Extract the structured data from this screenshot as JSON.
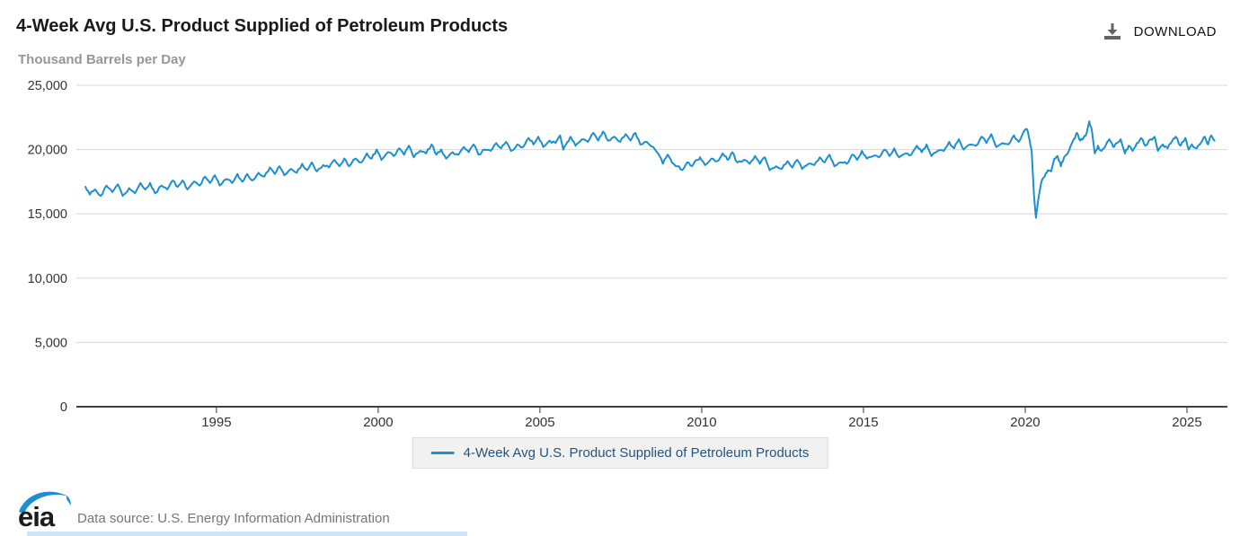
{
  "header": {
    "title": "4-Week Avg U.S. Product Supplied of Petroleum Products",
    "subtitle": "Thousand Barrels per Day",
    "download_label": "DOWNLOAD"
  },
  "legend": {
    "label": "4-Week Avg U.S. Product Supplied of Petroleum Products"
  },
  "footer": {
    "logo_text": "eia",
    "data_source": "Data source: U.S. Energy Information Administration"
  },
  "colors": {
    "line": "#1b8fd0",
    "grid": "#d8d8d8",
    "axis": "#404040",
    "tick_text": "#333333",
    "legend_text": "#25557d",
    "icon_gray": "#636363",
    "logo_blue": "#1b8fd0"
  },
  "chart_data": {
    "type": "line",
    "title": "4-Week Avg U.S. Product Supplied of Petroleum Products",
    "ylabel": "Thousand Barrels per Day",
    "legend_position": "bottom",
    "grid": true,
    "texture_amplitude": 110,
    "x_axis": {
      "range": [
        1990.67,
        2026.25
      ],
      "ticks": [
        1995,
        2000,
        2005,
        2010,
        2015,
        2020,
        2025
      ]
    },
    "y_axis": {
      "range": [
        0,
        25000
      ],
      "tick_step": 5000,
      "tick_labels": [
        "0",
        "5,000",
        "10,000",
        "15,000",
        "20,000",
        "25,000"
      ]
    },
    "series": [
      {
        "name": "4-Week Avg U.S. Product Supplied of Petroleum Products",
        "color": "#1b8fd0",
        "points": [
          [
            1990.95,
            17100
          ],
          [
            1991.08,
            16500
          ],
          [
            1991.25,
            16900
          ],
          [
            1991.42,
            16400
          ],
          [
            1991.6,
            17200
          ],
          [
            1991.78,
            16700
          ],
          [
            1991.95,
            17300
          ],
          [
            1992.1,
            16400
          ],
          [
            1992.3,
            17000
          ],
          [
            1992.48,
            16600
          ],
          [
            1992.65,
            17400
          ],
          [
            1992.8,
            16900
          ],
          [
            1992.95,
            17400
          ],
          [
            1993.1,
            16600
          ],
          [
            1993.3,
            17200
          ],
          [
            1993.48,
            16900
          ],
          [
            1993.65,
            17600
          ],
          [
            1993.8,
            17100
          ],
          [
            1993.95,
            17600
          ],
          [
            1994.1,
            16900
          ],
          [
            1994.3,
            17500
          ],
          [
            1994.48,
            17200
          ],
          [
            1994.65,
            17900
          ],
          [
            1994.8,
            17400
          ],
          [
            1994.95,
            18000
          ],
          [
            1995.1,
            17200
          ],
          [
            1995.3,
            17700
          ],
          [
            1995.48,
            17400
          ],
          [
            1995.65,
            18100
          ],
          [
            1995.8,
            17500
          ],
          [
            1995.95,
            18100
          ],
          [
            1996.1,
            17600
          ],
          [
            1996.3,
            18200
          ],
          [
            1996.48,
            17900
          ],
          [
            1996.65,
            18600
          ],
          [
            1996.8,
            18100
          ],
          [
            1996.95,
            18700
          ],
          [
            1997.1,
            18000
          ],
          [
            1997.3,
            18500
          ],
          [
            1997.48,
            18200
          ],
          [
            1997.65,
            18900
          ],
          [
            1997.8,
            18400
          ],
          [
            1997.95,
            19000
          ],
          [
            1998.1,
            18300
          ],
          [
            1998.3,
            18800
          ],
          [
            1998.48,
            18600
          ],
          [
            1998.65,
            19200
          ],
          [
            1998.8,
            18700
          ],
          [
            1998.95,
            19300
          ],
          [
            1999.1,
            18700
          ],
          [
            1999.3,
            19300
          ],
          [
            1999.48,
            19000
          ],
          [
            1999.65,
            19700
          ],
          [
            1999.8,
            19300
          ],
          [
            1999.95,
            20000
          ],
          [
            2000.1,
            19200
          ],
          [
            2000.3,
            19800
          ],
          [
            2000.48,
            19500
          ],
          [
            2000.65,
            20100
          ],
          [
            2000.8,
            19600
          ],
          [
            2000.95,
            20300
          ],
          [
            2001.1,
            19400
          ],
          [
            2001.3,
            19900
          ],
          [
            2001.48,
            19700
          ],
          [
            2001.65,
            20400
          ],
          [
            2001.8,
            19600
          ],
          [
            2001.95,
            20000
          ],
          [
            2002.1,
            19300
          ],
          [
            2002.3,
            19800
          ],
          [
            2002.48,
            19600
          ],
          [
            2002.65,
            20200
          ],
          [
            2002.8,
            19800
          ],
          [
            2002.95,
            20400
          ],
          [
            2003.1,
            19600
          ],
          [
            2003.3,
            20000
          ],
          [
            2003.48,
            19900
          ],
          [
            2003.65,
            20500
          ],
          [
            2003.8,
            20100
          ],
          [
            2003.95,
            20600
          ],
          [
            2004.1,
            19900
          ],
          [
            2004.3,
            20400
          ],
          [
            2004.48,
            20200
          ],
          [
            2004.65,
            20900
          ],
          [
            2004.8,
            20400
          ],
          [
            2004.95,
            21000
          ],
          [
            2005.1,
            20200
          ],
          [
            2005.3,
            20700
          ],
          [
            2005.48,
            20500
          ],
          [
            2005.62,
            21100
          ],
          [
            2005.72,
            20000
          ],
          [
            2005.85,
            20600
          ],
          [
            2005.95,
            21000
          ],
          [
            2006.1,
            20300
          ],
          [
            2006.3,
            20800
          ],
          [
            2006.48,
            20600
          ],
          [
            2006.65,
            21300
          ],
          [
            2006.8,
            20700
          ],
          [
            2006.95,
            21400
          ],
          [
            2007.1,
            20700
          ],
          [
            2007.3,
            21000
          ],
          [
            2007.48,
            20600
          ],
          [
            2007.65,
            21200
          ],
          [
            2007.8,
            20700
          ],
          [
            2007.95,
            21300
          ],
          [
            2008.1,
            20400
          ],
          [
            2008.3,
            20600
          ],
          [
            2008.5,
            20200
          ],
          [
            2008.65,
            19700
          ],
          [
            2008.8,
            18900
          ],
          [
            2008.95,
            19600
          ],
          [
            2009.08,
            19000
          ],
          [
            2009.25,
            18700
          ],
          [
            2009.4,
            18400
          ],
          [
            2009.55,
            19000
          ],
          [
            2009.7,
            18700
          ],
          [
            2009.85,
            19200
          ],
          [
            2009.95,
            19400
          ],
          [
            2010.1,
            18800
          ],
          [
            2010.3,
            19300
          ],
          [
            2010.48,
            19100
          ],
          [
            2010.65,
            19700
          ],
          [
            2010.8,
            19200
          ],
          [
            2010.95,
            19800
          ],
          [
            2011.1,
            19000
          ],
          [
            2011.3,
            19200
          ],
          [
            2011.48,
            18900
          ],
          [
            2011.65,
            19500
          ],
          [
            2011.8,
            18900
          ],
          [
            2011.95,
            19400
          ],
          [
            2012.1,
            18400
          ],
          [
            2012.3,
            18700
          ],
          [
            2012.48,
            18500
          ],
          [
            2012.65,
            19100
          ],
          [
            2012.8,
            18600
          ],
          [
            2012.95,
            19200
          ],
          [
            2013.1,
            18500
          ],
          [
            2013.3,
            18900
          ],
          [
            2013.48,
            18800
          ],
          [
            2013.65,
            19400
          ],
          [
            2013.8,
            19000
          ],
          [
            2013.95,
            19600
          ],
          [
            2014.1,
            18700
          ],
          [
            2014.3,
            19000
          ],
          [
            2014.48,
            18900
          ],
          [
            2014.65,
            19600
          ],
          [
            2014.8,
            19200
          ],
          [
            2014.95,
            19900
          ],
          [
            2015.1,
            19300
          ],
          [
            2015.3,
            19500
          ],
          [
            2015.48,
            19400
          ],
          [
            2015.65,
            20000
          ],
          [
            2015.8,
            19500
          ],
          [
            2015.95,
            20100
          ],
          [
            2016.1,
            19400
          ],
          [
            2016.3,
            19700
          ],
          [
            2016.48,
            19600
          ],
          [
            2016.65,
            20300
          ],
          [
            2016.8,
            19800
          ],
          [
            2016.95,
            20400
          ],
          [
            2017.1,
            19500
          ],
          [
            2017.3,
            19900
          ],
          [
            2017.48,
            19900
          ],
          [
            2017.65,
            20600
          ],
          [
            2017.8,
            20100
          ],
          [
            2017.95,
            20800
          ],
          [
            2018.1,
            20000
          ],
          [
            2018.3,
            20400
          ],
          [
            2018.48,
            20300
          ],
          [
            2018.65,
            21000
          ],
          [
            2018.8,
            20500
          ],
          [
            2018.95,
            21200
          ],
          [
            2019.1,
            20200
          ],
          [
            2019.3,
            20500
          ],
          [
            2019.48,
            20400
          ],
          [
            2019.65,
            21100
          ],
          [
            2019.8,
            20600
          ],
          [
            2019.95,
            21400
          ],
          [
            2020.05,
            21600
          ],
          [
            2020.14,
            20700
          ],
          [
            2020.2,
            19800
          ],
          [
            2020.27,
            16500
          ],
          [
            2020.33,
            14700
          ],
          [
            2020.42,
            16400
          ],
          [
            2020.5,
            17500
          ],
          [
            2020.6,
            17900
          ],
          [
            2020.7,
            18400
          ],
          [
            2020.8,
            18300
          ],
          [
            2020.9,
            19300
          ],
          [
            2021.0,
            19500
          ],
          [
            2021.1,
            18700
          ],
          [
            2021.2,
            19400
          ],
          [
            2021.35,
            19900
          ],
          [
            2021.5,
            20800
          ],
          [
            2021.6,
            21300
          ],
          [
            2021.7,
            20700
          ],
          [
            2021.8,
            20900
          ],
          [
            2021.9,
            21300
          ],
          [
            2021.98,
            22200
          ],
          [
            2022.06,
            21500
          ],
          [
            2022.15,
            19700
          ],
          [
            2022.25,
            20300
          ],
          [
            2022.35,
            19900
          ],
          [
            2022.5,
            20400
          ],
          [
            2022.6,
            20800
          ],
          [
            2022.72,
            20200
          ],
          [
            2022.82,
            20500
          ],
          [
            2022.95,
            20800
          ],
          [
            2023.08,
            19700
          ],
          [
            2023.2,
            20300
          ],
          [
            2023.32,
            19900
          ],
          [
            2023.45,
            20500
          ],
          [
            2023.58,
            20900
          ],
          [
            2023.72,
            20300
          ],
          [
            2023.88,
            20800
          ],
          [
            2024.0,
            21000
          ],
          [
            2024.1,
            19900
          ],
          [
            2024.25,
            20400
          ],
          [
            2024.4,
            20100
          ],
          [
            2024.55,
            20700
          ],
          [
            2024.65,
            21000
          ],
          [
            2024.8,
            20300
          ],
          [
            2024.95,
            20900
          ],
          [
            2025.05,
            20000
          ],
          [
            2025.15,
            20400
          ],
          [
            2025.3,
            20100
          ],
          [
            2025.45,
            20600
          ],
          [
            2025.55,
            21000
          ],
          [
            2025.65,
            20400
          ],
          [
            2025.75,
            21100
          ],
          [
            2025.85,
            20700
          ]
        ]
      }
    ]
  }
}
